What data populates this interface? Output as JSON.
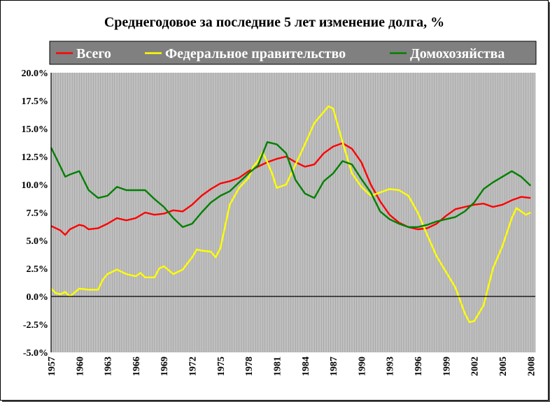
{
  "chart_data": {
    "type": "line",
    "title": "Среднегодовое за последние 5 лет изменение долга, %",
    "xlabel": "",
    "ylabel": "",
    "xlim": [
      1957,
      2008.5
    ],
    "ylim": [
      -5,
      20
    ],
    "y_ticks": [
      "-5.0%",
      "-2.5%",
      "0.0%",
      "2.5%",
      "5.0%",
      "7.5%",
      "10.0%",
      "12.5%",
      "15.0%",
      "17.5%",
      "20.0%"
    ],
    "x_ticks": [
      "1957",
      "1960",
      "1963",
      "1966",
      "1969",
      "1972",
      "1975",
      "1978",
      "1981",
      "1984",
      "1987",
      "1990",
      "1993",
      "1996",
      "1999",
      "2002",
      "2005",
      "2008"
    ],
    "grid": "vertical",
    "legend_position": "top",
    "background_color": "#c0c0c0",
    "legend_background": "#808080",
    "series": [
      {
        "name": "Всего",
        "color": "#ff0000",
        "x": [
          1957,
          1958,
          1958.5,
          1959,
          1960,
          1960.5,
          1961,
          1962,
          1963,
          1964,
          1965,
          1966,
          1967,
          1968,
          1969,
          1970,
          1971,
          1972,
          1973,
          1974,
          1975,
          1976,
          1977,
          1978,
          1979,
          1980,
          1981,
          1982,
          1983,
          1984,
          1985,
          1986,
          1987,
          1988,
          1989,
          1990,
          1991,
          1992,
          1993,
          1994,
          1995,
          1996,
          1997,
          1998,
          1999,
          2000,
          2001,
          2002,
          2003,
          2004,
          2005,
          2006,
          2007,
          2008
        ],
        "values": [
          6.3,
          5.9,
          5.5,
          6.0,
          6.4,
          6.3,
          6.0,
          6.1,
          6.5,
          7.0,
          6.8,
          7.0,
          7.5,
          7.3,
          7.4,
          7.7,
          7.6,
          8.2,
          9.0,
          9.6,
          10.1,
          10.3,
          10.6,
          11.2,
          11.6,
          12.0,
          12.3,
          12.5,
          12.0,
          11.6,
          11.8,
          12.8,
          13.4,
          13.7,
          13.2,
          12.0,
          10.0,
          8.5,
          7.3,
          6.6,
          6.2,
          6.0,
          6.1,
          6.5,
          7.2,
          7.8,
          8.0,
          8.2,
          8.3,
          8.0,
          8.2,
          8.6,
          8.9,
          8.8
        ]
      },
      {
        "name": "Федеральное правительство",
        "color": "#ffff00",
        "x": [
          1957,
          1957.5,
          1958,
          1958.5,
          1959,
          1960,
          1961,
          1962,
          1962.5,
          1963,
          1964,
          1965,
          1966,
          1966.5,
          1967,
          1968,
          1968.5,
          1969,
          1970,
          1971,
          1972,
          1972.5,
          1973,
          1974,
          1974.5,
          1975,
          1976,
          1977,
          1978,
          1978.5,
          1979,
          1979.5,
          1980,
          1980.5,
          1981,
          1982,
          1983,
          1984,
          1985,
          1986,
          1986.5,
          1987,
          1988,
          1989,
          1990,
          1991,
          1992,
          1993,
          1994,
          1995,
          1996,
          1997,
          1998,
          1999,
          2000,
          2001,
          2001.5,
          2002,
          2003,
          2004,
          2005,
          2006,
          2006.5,
          2007,
          2007.5,
          2008
        ],
        "values": [
          0.7,
          0.3,
          0.2,
          0.4,
          0.0,
          0.7,
          0.6,
          0.6,
          1.5,
          2.0,
          2.4,
          2.0,
          1.8,
          2.1,
          1.7,
          1.7,
          2.5,
          2.7,
          2.0,
          2.4,
          3.5,
          4.2,
          4.1,
          4.0,
          3.5,
          4.3,
          8.2,
          9.7,
          10.6,
          11.6,
          12.1,
          12.9,
          12.0,
          11.0,
          9.7,
          10.0,
          11.8,
          13.6,
          15.5,
          16.5,
          17.0,
          16.8,
          13.8,
          11.0,
          9.8,
          9.0,
          9.3,
          9.6,
          9.5,
          9.0,
          7.5,
          5.5,
          3.6,
          2.2,
          0.8,
          -1.5,
          -2.3,
          -2.2,
          -0.8,
          2.5,
          4.5,
          7.0,
          7.9,
          7.6,
          7.3,
          7.5
        ]
      },
      {
        "name": "Домохозяйства",
        "color": "#008000",
        "x": [
          1957,
          1958,
          1958.5,
          1959,
          1960,
          1961,
          1962,
          1963,
          1964,
          1965,
          1966,
          1967,
          1968,
          1969,
          1970,
          1971,
          1972,
          1973,
          1974,
          1975,
          1976,
          1977,
          1978,
          1979,
          1980,
          1981,
          1982,
          1983,
          1984,
          1985,
          1986,
          1987,
          1988,
          1989,
          1990,
          1991,
          1992,
          1993,
          1994,
          1995,
          1996,
          1997,
          1998,
          1999,
          2000,
          2001,
          2002,
          2003,
          2004,
          2005,
          2006,
          2007,
          2008
        ],
        "values": [
          13.3,
          11.6,
          10.7,
          10.9,
          11.2,
          9.5,
          8.8,
          9.0,
          9.8,
          9.5,
          9.5,
          9.5,
          8.7,
          8.0,
          7.0,
          6.2,
          6.5,
          7.5,
          8.4,
          9.0,
          9.4,
          10.2,
          11.0,
          11.7,
          13.8,
          13.6,
          12.8,
          10.4,
          9.2,
          8.8,
          10.3,
          11.0,
          12.1,
          11.8,
          10.5,
          9.3,
          7.6,
          6.9,
          6.5,
          6.2,
          6.2,
          6.4,
          6.7,
          6.9,
          7.1,
          7.6,
          8.4,
          9.6,
          10.2,
          10.7,
          11.2,
          10.7,
          9.9
        ]
      }
    ]
  }
}
